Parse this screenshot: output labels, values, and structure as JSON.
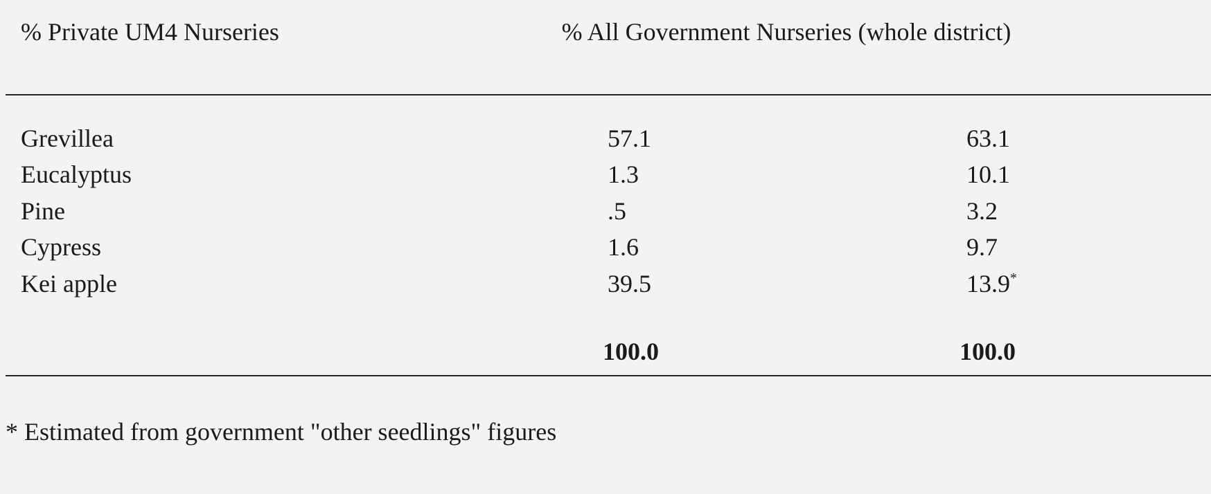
{
  "table": {
    "header": {
      "private": "% Private UM4 Nurseries",
      "government": "% All Government Nurseries (whole district)"
    },
    "rows": [
      {
        "name": "Grevillea",
        "private": "57.1",
        "government": "63.1"
      },
      {
        "name": "Eucalyptus",
        "private": "1.3",
        "government": "10.1"
      },
      {
        "name": "Pine",
        "private": ".5",
        "government": "3.2"
      },
      {
        "name": "Cypress",
        "private": "1.6",
        "government": "9.7"
      },
      {
        "name": "Kei apple",
        "private": "39.5",
        "government": "13.9",
        "government_note": "*"
      }
    ],
    "total": {
      "private": "100.0",
      "government": "100.0"
    }
  },
  "footnote": "* Estimated from government \"other seedlings\" figures"
}
